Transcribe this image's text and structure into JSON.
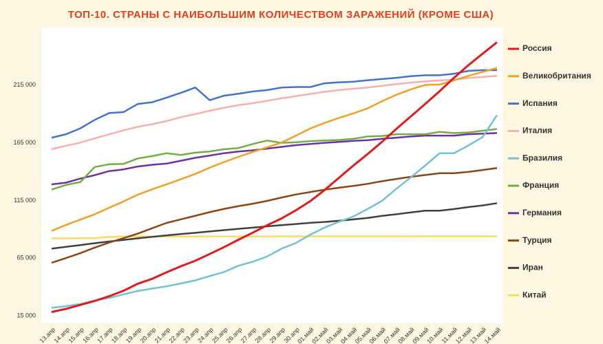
{
  "chart_data": {
    "type": "line",
    "title": "ТОП-10. СТРАНЫ С НАИБОЛЬШИМ КОЛИЧЕСТВОМ ЗАРАЖЕНИЙ (КРОМЕ США)",
    "categories": [
      "13.апр",
      "14.апр",
      "15.апр",
      "16.апр",
      "17.апр",
      "18.апр",
      "19.апр",
      "20.апр",
      "21.апр",
      "22.апр",
      "23.апр",
      "24.апр",
      "25.апр",
      "26.апр",
      "27.апр",
      "28.апр",
      "29.апр",
      "30.апр",
      "01.май",
      "02.май",
      "03.май",
      "04.май",
      "05.май",
      "06.май",
      "07.май",
      "08.май",
      "09.май",
      "10.май",
      "11.май",
      "12.май",
      "13.май",
      "14.май"
    ],
    "ylim": [
      8500,
      265000
    ],
    "yticks": [
      {
        "value": 15000,
        "label": "15 000"
      },
      {
        "value": 65000,
        "label": "65 000"
      },
      {
        "value": 115000,
        "label": "115 000"
      },
      {
        "value": 165000,
        "label": "165 000"
      },
      {
        "value": 215000,
        "label": "215 000"
      }
    ],
    "grid": false,
    "legend": "right",
    "series": [
      {
        "name": "Россия",
        "color": "#e31a1c",
        "values": [
          18328,
          21102,
          24490,
          27938,
          32008,
          36793,
          42853,
          47121,
          52763,
          57999,
          62773,
          68622,
          74588,
          80949,
          87147,
          93558,
          99399,
          106498,
          114431,
          124054,
          134687,
          145268,
          155370,
          165929,
          177160,
          187859,
          198676,
          209688,
          221344,
          232243,
          242271,
          252245
        ]
      },
      {
        "name": "Великобритания",
        "color": "#f0a024",
        "values": [
          88621,
          93873,
          98476,
          103093,
          108692,
          114217,
          120067,
          124743,
          129044,
          133495,
          138078,
          143464,
          148377,
          152840,
          157149,
          161145,
          165221,
          171253,
          177454,
          182260,
          186599,
          190584,
          194990,
          201101,
          206715,
          211364,
          215260,
          215500,
          219183,
          223060,
          226463,
          230000
        ]
      },
      {
        "name": "Испания",
        "color": "#4472c4",
        "values": [
          169500,
          172500,
          177600,
          184900,
          190800,
          191700,
          198700,
          200200,
          204200,
          208400,
          213000,
          202000,
          205900,
          207600,
          209500,
          210800,
          212900,
          213400,
          213400,
          216600,
          217500,
          218000,
          219300,
          220300,
          221400,
          222800,
          223600,
          223600,
          224900,
          227400,
          228000,
          228000
        ]
      },
      {
        "name": "Италия",
        "color": "#f4b0ae",
        "values": [
          159500,
          162500,
          165200,
          168900,
          172400,
          175900,
          178900,
          181200,
          183900,
          187300,
          189900,
          192900,
          195400,
          197700,
          199400,
          201500,
          203600,
          205500,
          207400,
          209300,
          210700,
          211900,
          213000,
          214500,
          215900,
          217200,
          218300,
          219100,
          219800,
          221200,
          222100,
          223100
        ]
      },
      {
        "name": "Бразилия",
        "color": "#72bfd6",
        "values": [
          22000,
          23430,
          25262,
          28320,
          30425,
          33682,
          36599,
          38654,
          40581,
          43079,
          45757,
          49492,
          52995,
          58509,
          61888,
          66501,
          73235,
          78162,
          85380,
          91589,
          96559,
          101147,
          107780,
          114715,
          125218,
          135106,
          145328,
          155939,
          155939,
          162699,
          170000,
          189000
        ]
      },
      {
        "name": "Франция",
        "color": "#70ad47",
        "values": [
          124500,
          128500,
          131000,
          144000,
          146500,
          146800,
          151500,
          153500,
          156000,
          154500,
          156500,
          157500,
          159500,
          160500,
          164000,
          167000,
          165000,
          165500,
          166500,
          167000,
          167500,
          168500,
          170500,
          171000,
          172500,
          172500,
          172500,
          174500,
          173500,
          174000,
          175500,
          177000
        ]
      },
      {
        "name": "Германия",
        "color": "#7030a0",
        "values": [
          129000,
          130500,
          134000,
          137000,
          140500,
          142000,
          144500,
          146000,
          147000,
          149500,
          152000,
          154000,
          156000,
          157500,
          158500,
          160000,
          161500,
          163000,
          164000,
          165000,
          165800,
          166700,
          167300,
          168500,
          169500,
          170500,
          171300,
          171300,
          171300,
          172500,
          173000,
          173500
        ]
      },
      {
        "name": "Турция",
        "color": "#8b4513",
        "values": [
          61049,
          65111,
          69392,
          74193,
          78546,
          82329,
          86306,
          90980,
          95591,
          98674,
          101790,
          104912,
          107773,
          110130,
          112261,
          114653,
          117589,
          120204,
          122392,
          124375,
          126045,
          127659,
          129491,
          131744,
          133721,
          135569,
          137115,
          138657,
          138657,
          139771,
          141475,
          143114
        ]
      },
      {
        "name": "Иран",
        "color": "#404040",
        "values": [
          73303,
          74877,
          76389,
          77995,
          79494,
          80868,
          82211,
          83505,
          84802,
          85996,
          87026,
          88194,
          89328,
          90481,
          91472,
          92584,
          93657,
          94640,
          95646,
          96448,
          97424,
          98647,
          99970,
          101650,
          103135,
          104691,
          106220,
          106220,
          107603,
          109286,
          110767,
          112725
        ]
      },
      {
        "name": "Китай",
        "color": "#ffd966",
        "values": [
          82160,
          82249,
          82295,
          82341,
          83403,
          83760,
          83787,
          83805,
          83817,
          83853,
          83868,
          83884,
          83899,
          83909,
          83912,
          83918,
          83940,
          83944,
          83956,
          83959,
          83964,
          83966,
          83968,
          83970,
          83975,
          83976,
          83990,
          84010,
          84011,
          84018,
          84024,
          84029
        ]
      }
    ]
  }
}
